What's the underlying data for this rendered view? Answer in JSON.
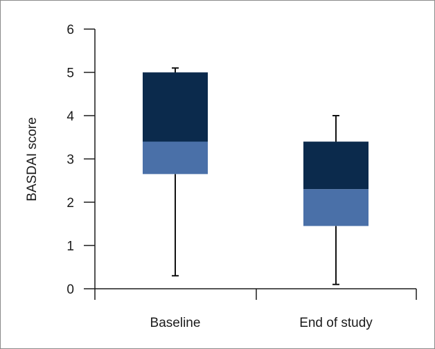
{
  "chart_data": {
    "type": "box",
    "ylabel": "BASDAI score",
    "ylim": [
      0,
      6
    ],
    "yticks": [
      0,
      1,
      2,
      3,
      4,
      5,
      6
    ],
    "categories": [
      "Baseline",
      "End of study"
    ],
    "boxes": [
      {
        "category": "Baseline",
        "whisker_low": 0.3,
        "q1": 2.65,
        "median": 3.4,
        "q3": 5.0,
        "whisker_high": 5.1
      },
      {
        "category": "End of study",
        "whisker_low": 0.1,
        "q1": 1.45,
        "median": 2.3,
        "q3": 3.4,
        "whisker_high": 4.0
      }
    ],
    "colors": {
      "upper_box": "#0b2a4c",
      "lower_box": "#4a70a8",
      "axis": "#1a1a1a",
      "whisker": "#111111"
    }
  }
}
